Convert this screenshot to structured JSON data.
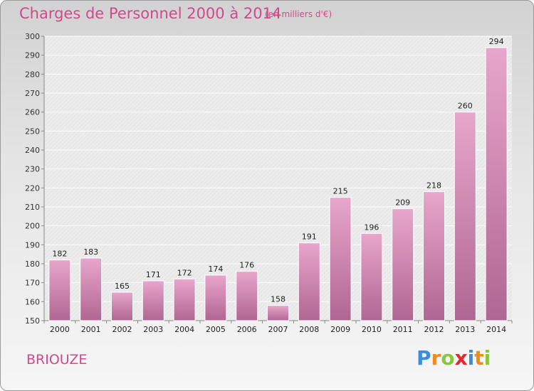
{
  "header": {
    "title": "Charges de Personnel 2000 à 2014",
    "unit": "(en milliers d'€)"
  },
  "footer": {
    "place": "BRIOUZE",
    "logo_letters": [
      "P",
      "r",
      "o",
      "x",
      "i",
      "t",
      "i"
    ]
  },
  "colors": {
    "accent": "#d04a8a",
    "bar_top": "#e8a6cc",
    "bar_bottom": "#b06692"
  },
  "chart_data": {
    "type": "bar",
    "title": "Charges de Personnel 2000 à 2014",
    "subtitle": "(en milliers d'€)",
    "xlabel": "",
    "ylabel": "",
    "categories": [
      "2000",
      "2001",
      "2002",
      "2003",
      "2004",
      "2005",
      "2006",
      "2007",
      "2008",
      "2009",
      "2010",
      "2011",
      "2012",
      "2013",
      "2014"
    ],
    "values": [
      182,
      183,
      165,
      171,
      172,
      174,
      176,
      158,
      191,
      215,
      196,
      209,
      218,
      260,
      294
    ],
    "ylim": [
      150,
      300
    ],
    "yticks": [
      150,
      160,
      170,
      180,
      190,
      200,
      210,
      220,
      230,
      240,
      250,
      260,
      270,
      280,
      290,
      300
    ],
    "grid": true,
    "data_labels": true
  }
}
